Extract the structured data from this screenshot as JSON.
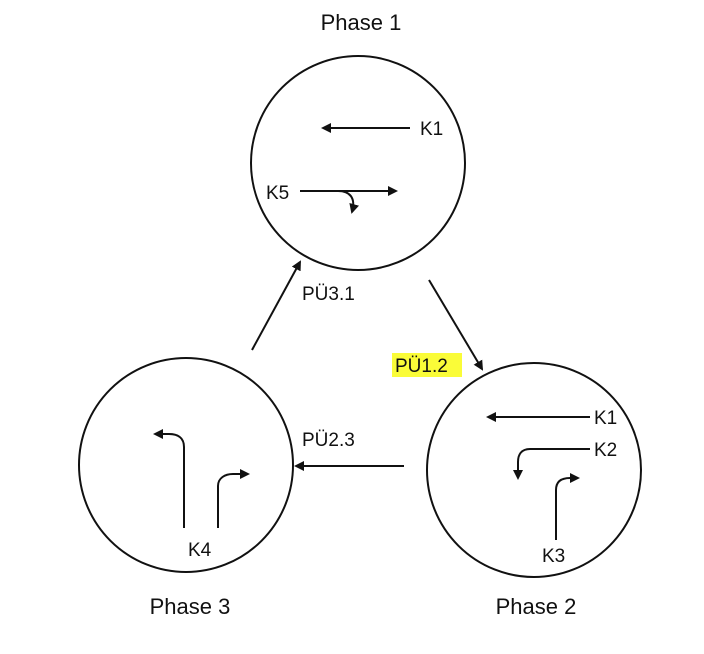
{
  "phases": [
    {
      "label": "Phase 1"
    },
    {
      "label": "Phase 2"
    },
    {
      "label": "Phase 3"
    }
  ],
  "transitions": [
    {
      "label": "PÜ3.1",
      "highlighted": false
    },
    {
      "label": "PÜ1.2",
      "highlighted": true
    },
    {
      "label": "PÜ2.3",
      "highlighted": false
    }
  ],
  "streams": {
    "phase1": [
      "K1",
      "K5"
    ],
    "phase2": [
      "K1",
      "K2",
      "K3"
    ],
    "phase3": [
      "K4"
    ]
  },
  "colors": {
    "ink": "#111111",
    "highlight": "#fafc38",
    "background": "#ffffff"
  }
}
